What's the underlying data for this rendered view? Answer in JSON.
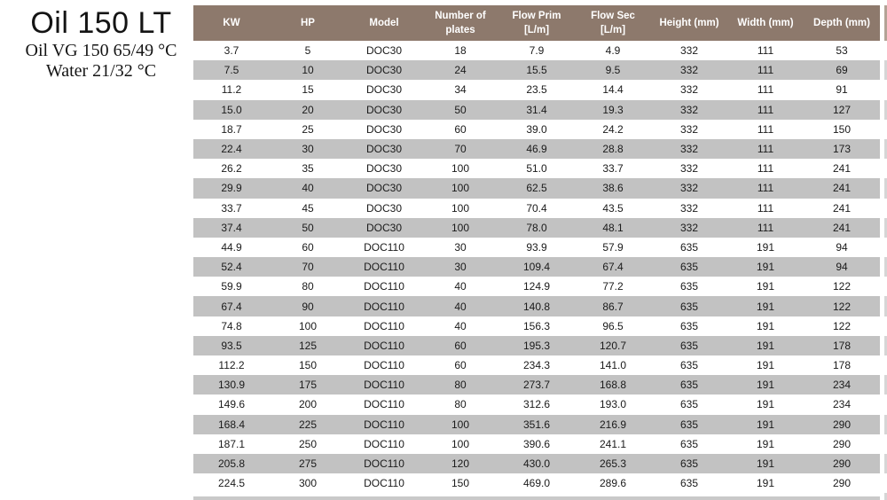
{
  "product": {
    "title": "Oil 150 LT",
    "oil_spec": "Oil VG 150 65/49 °C",
    "water_spec": "Water 21/32 °C"
  },
  "table": {
    "columns": [
      "KW",
      "HP",
      "Model",
      "Number of\nplates",
      "Flow Prim\n[L/m]",
      "Flow Sec\n[L/m]",
      "Height (mm)",
      "Width (mm)",
      "Depth (mm)"
    ],
    "rows": [
      [
        "3.7",
        "5",
        "DOC30",
        "18",
        "7.9",
        "4.9",
        "332",
        "111",
        "53"
      ],
      [
        "7.5",
        "10",
        "DOC30",
        "24",
        "15.5",
        "9.5",
        "332",
        "111",
        "69"
      ],
      [
        "11.2",
        "15",
        "DOC30",
        "34",
        "23.5",
        "14.4",
        "332",
        "111",
        "91"
      ],
      [
        "15.0",
        "20",
        "DOC30",
        "50",
        "31.4",
        "19.3",
        "332",
        "111",
        "127"
      ],
      [
        "18.7",
        "25",
        "DOC30",
        "60",
        "39.0",
        "24.2",
        "332",
        "111",
        "150"
      ],
      [
        "22.4",
        "30",
        "DOC30",
        "70",
        "46.9",
        "28.8",
        "332",
        "111",
        "173"
      ],
      [
        "26.2",
        "35",
        "DOC30",
        "100",
        "51.0",
        "33.7",
        "332",
        "111",
        "241"
      ],
      [
        "29.9",
        "40",
        "DOC30",
        "100",
        "62.5",
        "38.6",
        "332",
        "111",
        "241"
      ],
      [
        "33.7",
        "45",
        "DOC30",
        "100",
        "70.4",
        "43.5",
        "332",
        "111",
        "241"
      ],
      [
        "37.4",
        "50",
        "DOC30",
        "100",
        "78.0",
        "48.1",
        "332",
        "111",
        "241"
      ],
      [
        "44.9",
        "60",
        "DOC110",
        "30",
        "93.9",
        "57.9",
        "635",
        "191",
        "94"
      ],
      [
        "52.4",
        "70",
        "DOC110",
        "30",
        "109.4",
        "67.4",
        "635",
        "191",
        "94"
      ],
      [
        "59.9",
        "80",
        "DOC110",
        "40",
        "124.9",
        "77.2",
        "635",
        "191",
        "122"
      ],
      [
        "67.4",
        "90",
        "DOC110",
        "40",
        "140.8",
        "86.7",
        "635",
        "191",
        "122"
      ],
      [
        "74.8",
        "100",
        "DOC110",
        "40",
        "156.3",
        "96.5",
        "635",
        "191",
        "122"
      ],
      [
        "93.5",
        "125",
        "DOC110",
        "60",
        "195.3",
        "120.7",
        "635",
        "191",
        "178"
      ],
      [
        "112.2",
        "150",
        "DOC110",
        "60",
        "234.3",
        "141.0",
        "635",
        "191",
        "178"
      ],
      [
        "130.9",
        "175",
        "DOC110",
        "80",
        "273.7",
        "168.8",
        "635",
        "191",
        "234"
      ],
      [
        "149.6",
        "200",
        "DOC110",
        "80",
        "312.6",
        "193.0",
        "635",
        "191",
        "234"
      ],
      [
        "168.4",
        "225",
        "DOC110",
        "100",
        "351.6",
        "216.9",
        "635",
        "191",
        "290"
      ],
      [
        "187.1",
        "250",
        "DOC110",
        "100",
        "390.6",
        "241.1",
        "635",
        "191",
        "290"
      ],
      [
        "205.8",
        "275",
        "DOC110",
        "120",
        "430.0",
        "265.3",
        "635",
        "191",
        "290"
      ],
      [
        "224.5",
        "300",
        "DOC110",
        "150",
        "469.0",
        "289.6",
        "635",
        "191",
        "290"
      ]
    ]
  },
  "colors": {
    "header_bg": "#8d796c",
    "header_text": "#ffffff",
    "row_stripe_bg": "#c2c2c2",
    "row_bg": "#ffffff",
    "body_text": "#1a1a1a"
  }
}
